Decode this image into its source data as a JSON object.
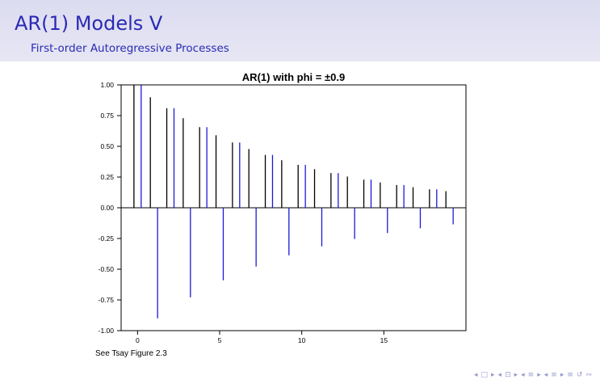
{
  "slide": {
    "title": "AR(1) Models V",
    "subtitle": "First-order Autoregressive Processes",
    "caption": "See Tsay Figure 2.3"
  },
  "nav": {
    "symbols": [
      "◂",
      "□",
      "▸",
      "◂",
      "⊡",
      "▸",
      "◂",
      "≡",
      "▸",
      "◂",
      "≡",
      "▸",
      "≡",
      "↺",
      "∾"
    ]
  },
  "chart_data": {
    "type": "bar",
    "title": "AR(1) with phi = ±0.9",
    "xlabel": "",
    "ylabel": "",
    "xlim": [
      -1,
      20
    ],
    "ylim": [
      -1.0,
      1.0
    ],
    "x_ticks": [
      0,
      5,
      10,
      15
    ],
    "x_tick_labels": [
      "0",
      "5",
      "10",
      "15"
    ],
    "y_ticks": [
      1.0,
      0.75,
      0.5,
      0.25,
      0.0,
      -0.25,
      -0.5,
      -0.75,
      -1.0
    ],
    "y_tick_labels": [
      "1.00",
      "0.75",
      "0.50",
      "0.25",
      "0.00",
      "-0.25",
      "-0.50",
      "-0.75",
      "-1.00"
    ],
    "grid": false,
    "legend": "none",
    "series": [
      {
        "color": "#000000",
        "x": [
          0,
          1,
          2,
          3,
          4,
          5,
          6,
          7,
          8,
          9,
          10,
          11,
          12,
          13,
          14,
          15,
          16,
          17,
          18,
          19
        ],
        "values": [
          1.0,
          0.9,
          0.81,
          0.729,
          0.656,
          0.59,
          0.531,
          0.478,
          0.43,
          0.387,
          0.349,
          0.314,
          0.282,
          0.254,
          0.229,
          0.206,
          0.185,
          0.167,
          0.15,
          0.135
        ]
      },
      {
        "color": "#1a1ad6",
        "x": [
          0,
          1,
          2,
          3,
          4,
          5,
          6,
          7,
          8,
          9,
          10,
          11,
          12,
          13,
          14,
          15,
          16,
          17,
          18,
          19
        ],
        "values": [
          1.0,
          -0.9,
          0.81,
          -0.729,
          0.656,
          -0.59,
          0.531,
          -0.478,
          0.43,
          -0.387,
          0.349,
          -0.314,
          0.282,
          -0.254,
          0.229,
          -0.206,
          0.185,
          -0.167,
          0.15,
          -0.135
        ]
      }
    ]
  }
}
